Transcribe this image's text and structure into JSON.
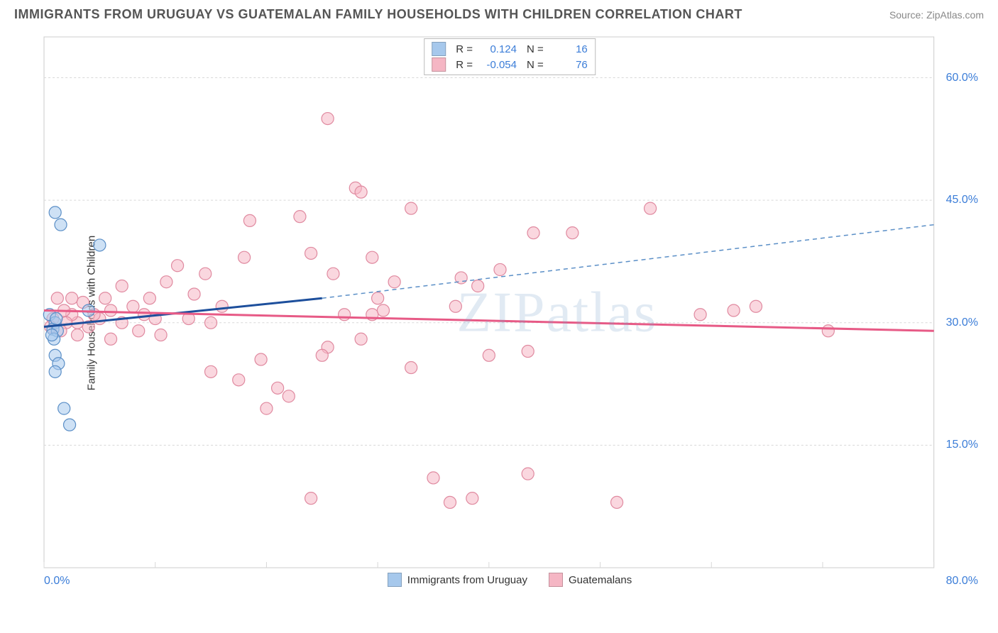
{
  "header": {
    "title": "IMMIGRANTS FROM URUGUAY VS GUATEMALAN FAMILY HOUSEHOLDS WITH CHILDREN CORRELATION CHART",
    "source": "Source: ZipAtlas.com"
  },
  "ylabel": "Family Households with Children",
  "watermark": "ZIPatlas",
  "legend_top": {
    "rows": [
      {
        "swatch": "#a6c8ec",
        "r_label": "R =",
        "r_val": "0.124",
        "n_label": "N =",
        "n_val": "16"
      },
      {
        "swatch": "#f5b6c4",
        "r_label": "R =",
        "r_val": "-0.054",
        "n_label": "N =",
        "n_val": "76"
      }
    ]
  },
  "legend_bottom": {
    "items": [
      {
        "swatch": "#a6c8ec",
        "label": "Immigrants from Uruguay"
      },
      {
        "swatch": "#f5b6c4",
        "label": "Guatemalans"
      }
    ]
  },
  "chart": {
    "type": "scatter",
    "background_color": "#ffffff",
    "grid_color": "#d8d8d8",
    "border_color": "#cccccc",
    "xlim": [
      0,
      80
    ],
    "ylim": [
      0,
      65
    ],
    "ytick_positions": [
      15,
      30,
      45,
      60
    ],
    "ytick_labels": [
      "15.0%",
      "30.0%",
      "45.0%",
      "60.0%"
    ],
    "xtick_positions": [
      0,
      10,
      20,
      30,
      40,
      50,
      60,
      70,
      80
    ],
    "x_min_label": "0.0%",
    "x_max_label": "80.0%",
    "marker_radius": 8.5,
    "marker_stroke_width": 1.2,
    "series": [
      {
        "name": "uruguay",
        "fill": "rgba(166,200,236,0.55)",
        "stroke": "#5b8fc7",
        "points": [
          [
            1.0,
            43.5
          ],
          [
            1.5,
            42.0
          ],
          [
            5.0,
            39.5
          ],
          [
            0.5,
            31.0
          ],
          [
            1.0,
            30.0
          ],
          [
            0.8,
            29.2
          ],
          [
            1.2,
            29.0
          ],
          [
            0.9,
            28.0
          ],
          [
            0.7,
            28.5
          ],
          [
            1.1,
            30.5
          ],
          [
            1.0,
            26.0
          ],
          [
            1.3,
            25.0
          ],
          [
            1.0,
            24.0
          ],
          [
            1.8,
            19.5
          ],
          [
            2.3,
            17.5
          ],
          [
            4.0,
            31.5
          ]
        ],
        "trend_solid": {
          "x1": 0,
          "y1": 29.5,
          "x2": 25,
          "y2": 33.0,
          "color": "#1d4f9c",
          "width": 3
        },
        "trend_dashed": {
          "x1": 25,
          "y1": 33.0,
          "x2": 80,
          "y2": 42.0,
          "color": "#5b8fc7",
          "width": 1.5,
          "dash": "6 5"
        }
      },
      {
        "name": "guatemalans",
        "fill": "rgba(245,182,196,0.55)",
        "stroke": "#e08aa0",
        "points": [
          [
            25.5,
            55.0
          ],
          [
            23.0,
            43.0
          ],
          [
            18.5,
            42.5
          ],
          [
            28.0,
            46.5
          ],
          [
            28.5,
            46.0
          ],
          [
            29.5,
            38.0
          ],
          [
            33.0,
            44.0
          ],
          [
            54.5,
            44.0
          ],
          [
            44.0,
            41.0
          ],
          [
            41.0,
            36.5
          ],
          [
            37.5,
            35.5
          ],
          [
            31.5,
            35.0
          ],
          [
            30.0,
            33.0
          ],
          [
            30.5,
            31.5
          ],
          [
            29.5,
            31.0
          ],
          [
            39.0,
            34.5
          ],
          [
            37.0,
            32.0
          ],
          [
            47.5,
            41.0
          ],
          [
            62.0,
            31.5
          ],
          [
            70.5,
            29.0
          ],
          [
            64.0,
            32.0
          ],
          [
            43.5,
            26.5
          ],
          [
            40.0,
            26.0
          ],
          [
            33.0,
            24.5
          ],
          [
            59.0,
            31.0
          ],
          [
            28.5,
            28.0
          ],
          [
            25.5,
            27.0
          ],
          [
            25.0,
            26.0
          ],
          [
            27.0,
            31.0
          ],
          [
            22.0,
            21.0
          ],
          [
            21.0,
            22.0
          ],
          [
            19.5,
            25.5
          ],
          [
            20.0,
            19.5
          ],
          [
            17.5,
            23.0
          ],
          [
            15.0,
            24.0
          ],
          [
            15.0,
            30.0
          ],
          [
            13.0,
            30.5
          ],
          [
            13.5,
            33.5
          ],
          [
            12.0,
            37.0
          ],
          [
            10.0,
            30.5
          ],
          [
            10.5,
            28.5
          ],
          [
            9.0,
            31.0
          ],
          [
            9.5,
            33.0
          ],
          [
            8.0,
            32.0
          ],
          [
            8.5,
            29.0
          ],
          [
            7.0,
            30.0
          ],
          [
            7.0,
            34.5
          ],
          [
            6.0,
            31.5
          ],
          [
            6.0,
            28.0
          ],
          [
            5.0,
            30.5
          ],
          [
            5.5,
            33.0
          ],
          [
            4.5,
            31.0
          ],
          [
            4.0,
            29.5
          ],
          [
            3.5,
            32.5
          ],
          [
            3.0,
            30.0
          ],
          [
            3.0,
            28.5
          ],
          [
            2.5,
            33.0
          ],
          [
            2.5,
            31.0
          ],
          [
            2.0,
            30.0
          ],
          [
            1.8,
            31.5
          ],
          [
            1.5,
            29.0
          ],
          [
            1.2,
            33.0
          ],
          [
            0.8,
            30.5
          ],
          [
            0.6,
            29.5
          ],
          [
            14.5,
            36.0
          ],
          [
            16.0,
            32.0
          ],
          [
            11.0,
            35.0
          ],
          [
            24.0,
            38.5
          ],
          [
            26.0,
            36.0
          ],
          [
            35.0,
            11.0
          ],
          [
            36.5,
            8.0
          ],
          [
            38.5,
            8.5
          ],
          [
            43.5,
            11.5
          ],
          [
            51.5,
            8.0
          ],
          [
            24.0,
            8.5
          ],
          [
            18.0,
            38.0
          ]
        ],
        "trend_solid": {
          "x1": 0,
          "y1": 31.5,
          "x2": 80,
          "y2": 29.0,
          "color": "#e75a86",
          "width": 3
        }
      }
    ]
  }
}
